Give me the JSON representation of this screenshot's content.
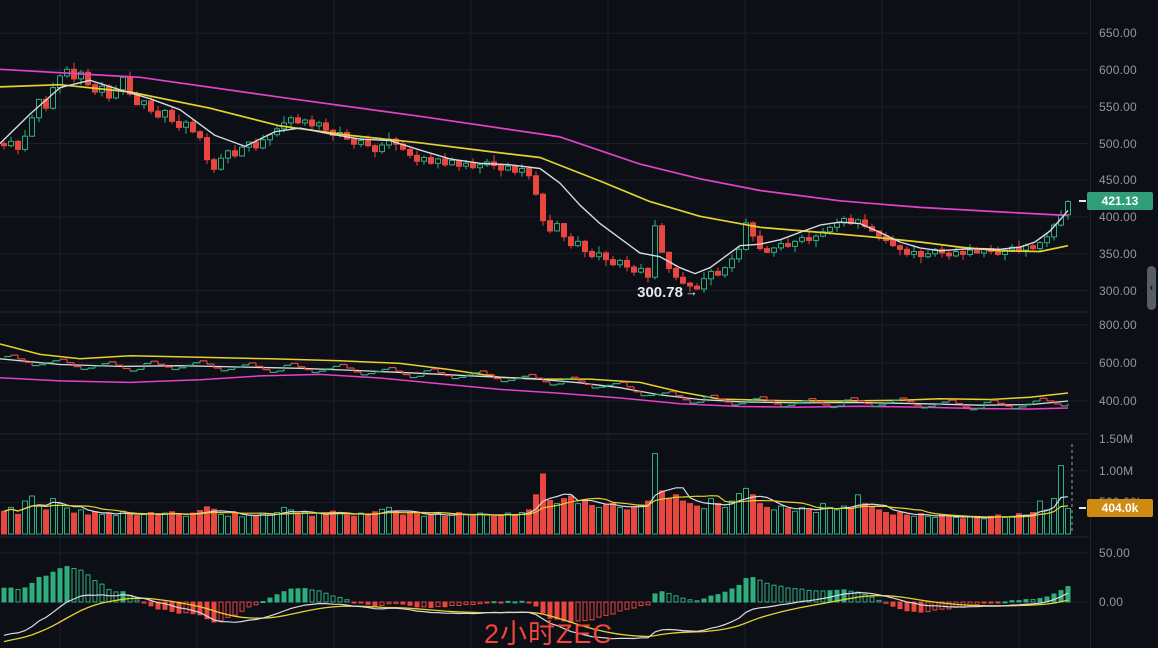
{
  "meta": {
    "watermark": "2小时ZEC",
    "timeframe": "2小时",
    "symbol": "ZEC"
  },
  "colors": {
    "background": "#0c0f16",
    "grid": "#1b1f2a",
    "separator": "#242835",
    "axis_text": "#9196a1",
    "up": "#2fae7d",
    "down": "#e8463f",
    "ma_fast": "#d8dadf",
    "ma_mid": "#e6d22e",
    "ma_slow": "#e243c8",
    "price_badge_bg": "#2f9e79",
    "volume_badge_bg": "#cf8a10",
    "watermark_red": "#f2433c",
    "annotation_text": "#e6e8ec",
    "dashed_marker": "#9aa0ab"
  },
  "badges": {
    "price": {
      "label": "421.13",
      "value": 421.13
    },
    "volume": {
      "label": "404.0k",
      "value_k": 404
    }
  },
  "annotation": {
    "text": "300.78",
    "arrow": "→",
    "candle_index": 99
  },
  "axis": {
    "price_ticks": [
      {
        "label": "650.00",
        "value": 650
      },
      {
        "label": "600.00",
        "value": 600
      },
      {
        "label": "550.00",
        "value": 550
      },
      {
        "label": "500.00",
        "value": 500
      },
      {
        "label": "450.00",
        "value": 450
      },
      {
        "label": "400.00",
        "value": 400
      },
      {
        "label": "350.00",
        "value": 350
      },
      {
        "label": "300.00",
        "value": 300
      }
    ],
    "indicator_ticks": [
      {
        "label": "800.00",
        "value": 800
      },
      {
        "label": "600.00",
        "value": 600
      },
      {
        "label": "400.00",
        "value": 400
      }
    ],
    "volume_ticks": [
      {
        "label": "1.50M",
        "value_k": 1500
      },
      {
        "label": "1.00M",
        "value_k": 1000
      },
      {
        "label": "500.00k",
        "value_k": 500
      }
    ],
    "macd_ticks": [
      {
        "label": "50.00",
        "value": 50
      },
      {
        "label": "0.00",
        "value": 0
      }
    ]
  },
  "chart_data": [
    {
      "type": "candlestick",
      "panel": "main",
      "ylim": [
        280,
        665
      ],
      "open_first": 500,
      "low_index": 99,
      "low_value": 300.78,
      "last_price": 421.13,
      "close": [
        497,
        503,
        492,
        510,
        535,
        560,
        548,
        576,
        592,
        601,
        588,
        597,
        580,
        570,
        578,
        562,
        573,
        590,
        567,
        553,
        558,
        544,
        536,
        545,
        530,
        522,
        529,
        516,
        508,
        478,
        465,
        480,
        490,
        483,
        495,
        502,
        494,
        505,
        512,
        520,
        528,
        535,
        528,
        532,
        524,
        528,
        518,
        511,
        515,
        506,
        499,
        504,
        497,
        489,
        498,
        506,
        499,
        492,
        484,
        476,
        481,
        473,
        479,
        471,
        477,
        469,
        473,
        467,
        471,
        475,
        470,
        464,
        469,
        461,
        466,
        456,
        431,
        395,
        381,
        391,
        373,
        361,
        367,
        353,
        346,
        351,
        342,
        335,
        341,
        332,
        325,
        330,
        318,
        388,
        352,
        330,
        318,
        310,
        306,
        302,
        316,
        326,
        321,
        331,
        343,
        356,
        392,
        374,
        357,
        352,
        358,
        364,
        360,
        367,
        372,
        368,
        374,
        380,
        386,
        392,
        398,
        391,
        396,
        387,
        381,
        374,
        368,
        361,
        356,
        349,
        353,
        346,
        350,
        356,
        351,
        347,
        353,
        349,
        355,
        351,
        357,
        353,
        349,
        355,
        359,
        355,
        361,
        357,
        365,
        373,
        389,
        403,
        421.13
      ],
      "wick_up_pattern": [
        3,
        6,
        2,
        8,
        4,
        1,
        5,
        7,
        2,
        4,
        9,
        3,
        5,
        2,
        6
      ],
      "wick_down_pattern": [
        5,
        2,
        7,
        3,
        1,
        6,
        4,
        2,
        8,
        3,
        5,
        9,
        2,
        4,
        6
      ],
      "ma_fast_points": [
        [
          0,
          500
        ],
        [
          30,
          540
        ],
        [
          60,
          576
        ],
        [
          90,
          586
        ],
        [
          120,
          573
        ],
        [
          150,
          561
        ],
        [
          180,
          546
        ],
        [
          215,
          511
        ],
        [
          245,
          496
        ],
        [
          275,
          516
        ],
        [
          300,
          521
        ],
        [
          330,
          513
        ],
        [
          360,
          506
        ],
        [
          390,
          504
        ],
        [
          420,
          491
        ],
        [
          450,
          479
        ],
        [
          480,
          473
        ],
        [
          510,
          471
        ],
        [
          540,
          466
        ],
        [
          560,
          446
        ],
        [
          580,
          416
        ],
        [
          600,
          391
        ],
        [
          620,
          371
        ],
        [
          640,
          351
        ],
        [
          660,
          346
        ],
        [
          680,
          331
        ],
        [
          695,
          323
        ],
        [
          710,
          331
        ],
        [
          725,
          346
        ],
        [
          740,
          361
        ],
        [
          760,
          363
        ],
        [
          780,
          369
        ],
        [
          800,
          379
        ],
        [
          820,
          389
        ],
        [
          840,
          393
        ],
        [
          860,
          391
        ],
        [
          880,
          379
        ],
        [
          900,
          366
        ],
        [
          920,
          358
        ],
        [
          940,
          354
        ],
        [
          960,
          356
        ],
        [
          980,
          357
        ],
        [
          1000,
          356
        ],
        [
          1020,
          359
        ],
        [
          1035,
          366
        ],
        [
          1050,
          381
        ],
        [
          1060,
          396
        ],
        [
          1068,
          409
        ]
      ],
      "ma_mid_points": [
        [
          0,
          577
        ],
        [
          60,
          580
        ],
        [
          130,
          570
        ],
        [
          210,
          548
        ],
        [
          280,
          524
        ],
        [
          350,
          511
        ],
        [
          420,
          501
        ],
        [
          490,
          489
        ],
        [
          540,
          481
        ],
        [
          600,
          449
        ],
        [
          650,
          421
        ],
        [
          700,
          401
        ],
        [
          760,
          386
        ],
        [
          820,
          379
        ],
        [
          870,
          373
        ],
        [
          920,
          366
        ],
        [
          960,
          359
        ],
        [
          1000,
          354
        ],
        [
          1040,
          353
        ],
        [
          1068,
          361
        ]
      ],
      "ma_slow_points": [
        [
          0,
          601
        ],
        [
          140,
          590
        ],
        [
          280,
          563
        ],
        [
          420,
          537
        ],
        [
          560,
          509
        ],
        [
          640,
          472
        ],
        [
          700,
          452
        ],
        [
          760,
          436
        ],
        [
          840,
          422
        ],
        [
          920,
          413
        ],
        [
          1000,
          407
        ],
        [
          1068,
          402
        ]
      ]
    },
    {
      "type": "line",
      "panel": "indicator-band",
      "ylim": [
        240,
        855
      ],
      "upper_points": [
        [
          0,
          700
        ],
        [
          40,
          645
        ],
        [
          80,
          622
        ],
        [
          130,
          638
        ],
        [
          200,
          630
        ],
        [
          270,
          622
        ],
        [
          340,
          612
        ],
        [
          400,
          598
        ],
        [
          450,
          565
        ],
        [
          500,
          525
        ],
        [
          545,
          515
        ],
        [
          590,
          515
        ],
        [
          640,
          498
        ],
        [
          680,
          448
        ],
        [
          720,
          410
        ],
        [
          780,
          402
        ],
        [
          840,
          400
        ],
        [
          900,
          404
        ],
        [
          940,
          412
        ],
        [
          990,
          408
        ],
        [
          1030,
          420
        ],
        [
          1068,
          442
        ]
      ],
      "mid_points": [
        [
          0,
          622
        ],
        [
          60,
          592
        ],
        [
          120,
          582
        ],
        [
          180,
          586
        ],
        [
          240,
          579
        ],
        [
          300,
          572
        ],
        [
          360,
          560
        ],
        [
          420,
          546
        ],
        [
          480,
          530
        ],
        [
          540,
          514
        ],
        [
          580,
          496
        ],
        [
          620,
          470
        ],
        [
          660,
          432
        ],
        [
          700,
          408
        ],
        [
          740,
          396
        ],
        [
          800,
          390
        ],
        [
          860,
          392
        ],
        [
          920,
          386
        ],
        [
          980,
          378
        ],
        [
          1030,
          381
        ],
        [
          1068,
          400
        ]
      ],
      "lower_points": [
        [
          0,
          522
        ],
        [
          60,
          506
        ],
        [
          130,
          498
        ],
        [
          200,
          512
        ],
        [
          260,
          532
        ],
        [
          320,
          540
        ],
        [
          380,
          521
        ],
        [
          440,
          491
        ],
        [
          500,
          461
        ],
        [
          560,
          441
        ],
        [
          620,
          416
        ],
        [
          680,
          386
        ],
        [
          740,
          371
        ],
        [
          800,
          368
        ],
        [
          860,
          372
        ],
        [
          920,
          368
        ],
        [
          980,
          360
        ],
        [
          1030,
          358
        ],
        [
          1068,
          363
        ]
      ],
      "step_offsets": [
        10,
        18,
        6,
        -4,
        -14,
        -8,
        2,
        12,
        20,
        8,
        -6,
        -16,
        -10,
        -2,
        8,
        16,
        4,
        -8,
        -18,
        -12
      ]
    },
    {
      "type": "bar",
      "panel": "volume",
      "unit": "k",
      "ylim_k": [
        0,
        1550
      ],
      "ma_fast_period": 5,
      "ma_slow_period": 10,
      "current_value_k": 404,
      "values_k": [
        360,
        420,
        310,
        520,
        600,
        450,
        380,
        560,
        480,
        410,
        330,
        380,
        300,
        350,
        310,
        330,
        290,
        360,
        310,
        290,
        310,
        340,
        290,
        330,
        350,
        300,
        280,
        330,
        370,
        430,
        390,
        310,
        280,
        330,
        270,
        300,
        280,
        330,
        300,
        340,
        420,
        380,
        310,
        340,
        280,
        330,
        300,
        360,
        330,
        300,
        280,
        330,
        300,
        350,
        390,
        420,
        360,
        300,
        340,
        330,
        280,
        300,
        330,
        280,
        300,
        340,
        300,
        280,
        330,
        300,
        280,
        300,
        330,
        300,
        340,
        380,
        620,
        950,
        530,
        480,
        560,
        600,
        480,
        540,
        450,
        420,
        460,
        480,
        420,
        380,
        420,
        460,
        520,
        1270,
        680,
        560,
        620,
        520,
        480,
        440,
        400,
        560,
        480,
        420,
        520,
        640,
        720,
        620,
        480,
        420,
        380,
        440,
        400,
        360,
        420,
        380,
        340,
        480,
        420,
        380,
        440,
        400,
        620,
        480,
        420,
        380,
        340,
        300,
        340,
        300,
        280,
        320,
        280,
        260,
        300,
        280,
        260,
        240,
        280,
        260,
        240,
        280,
        300,
        260,
        280,
        320,
        300,
        340,
        520,
        380,
        560,
        1080,
        404
      ]
    },
    {
      "type": "macd",
      "panel": "macd",
      "params": {
        "fast": 12,
        "slow": 26,
        "signal": 9
      },
      "ylim": [
        -45,
        55
      ],
      "hist_display_scale": 2.2
    }
  ]
}
